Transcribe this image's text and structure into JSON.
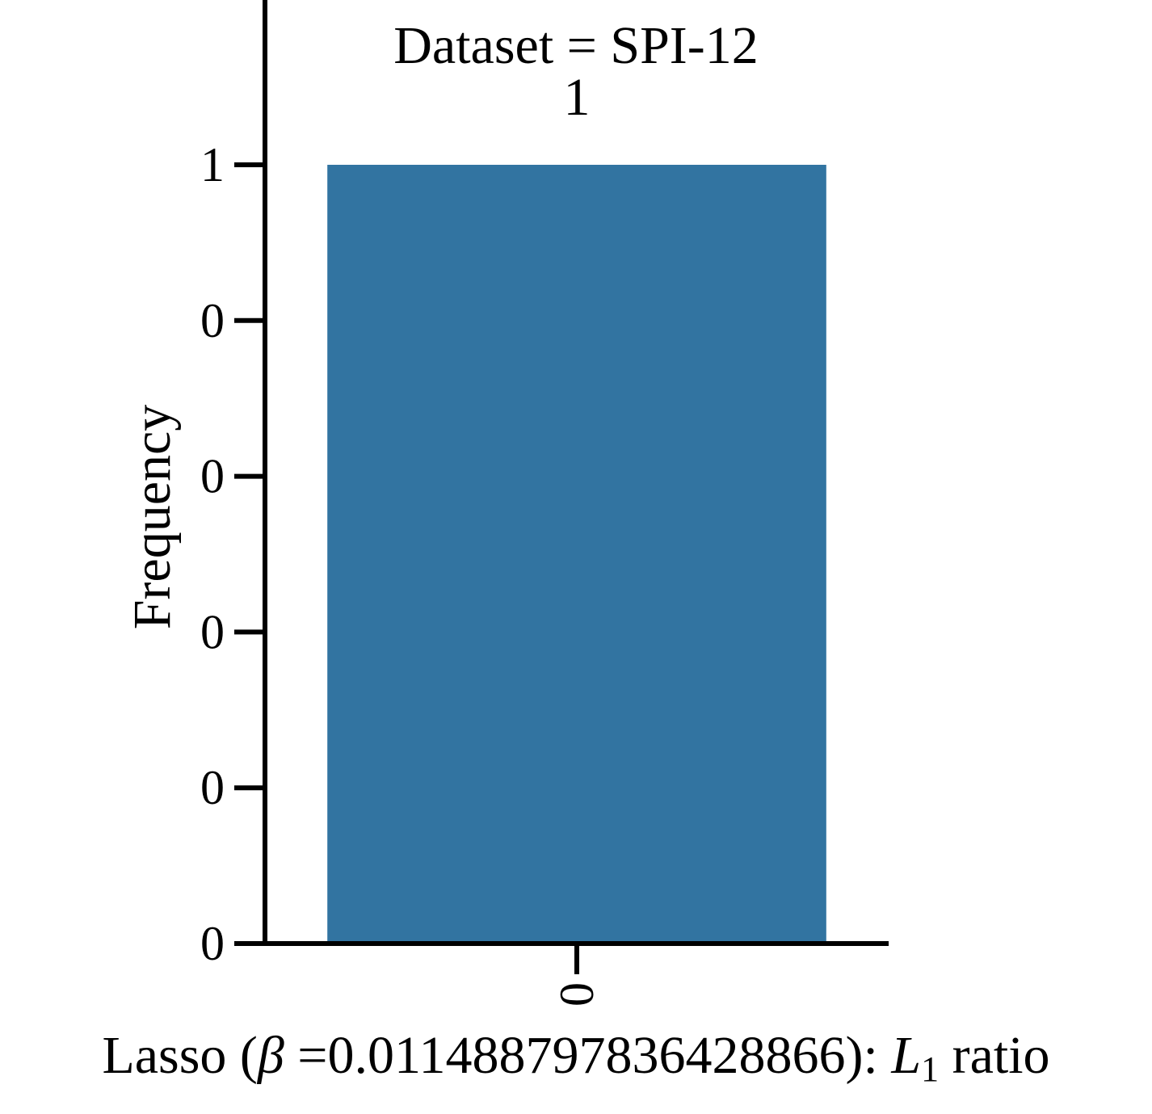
{
  "chart_data": {
    "type": "bar",
    "title": "Dataset = SPI-12",
    "xlabel_parts": {
      "prefix": "Lasso (",
      "beta_symbol": "β",
      "middle": " =0.011488797836428866): ",
      "l_symbol": "L",
      "l_subscript": "1",
      "suffix": " ratio"
    },
    "ylabel": "Frequency",
    "categories": [
      "0"
    ],
    "values": [
      1
    ],
    "data_labels": [
      "1"
    ],
    "ylim": [
      0,
      1.5
    ],
    "yticks": [
      0,
      0.2,
      0.4,
      0.6,
      0.8,
      1.0
    ],
    "ytick_labels": [
      "0",
      "0",
      "0",
      "0",
      "0",
      "1"
    ],
    "xtick_rotation": 90,
    "grid": false,
    "legend": "none",
    "bar_color": "#3274a1",
    "axis_color": "#000000"
  }
}
